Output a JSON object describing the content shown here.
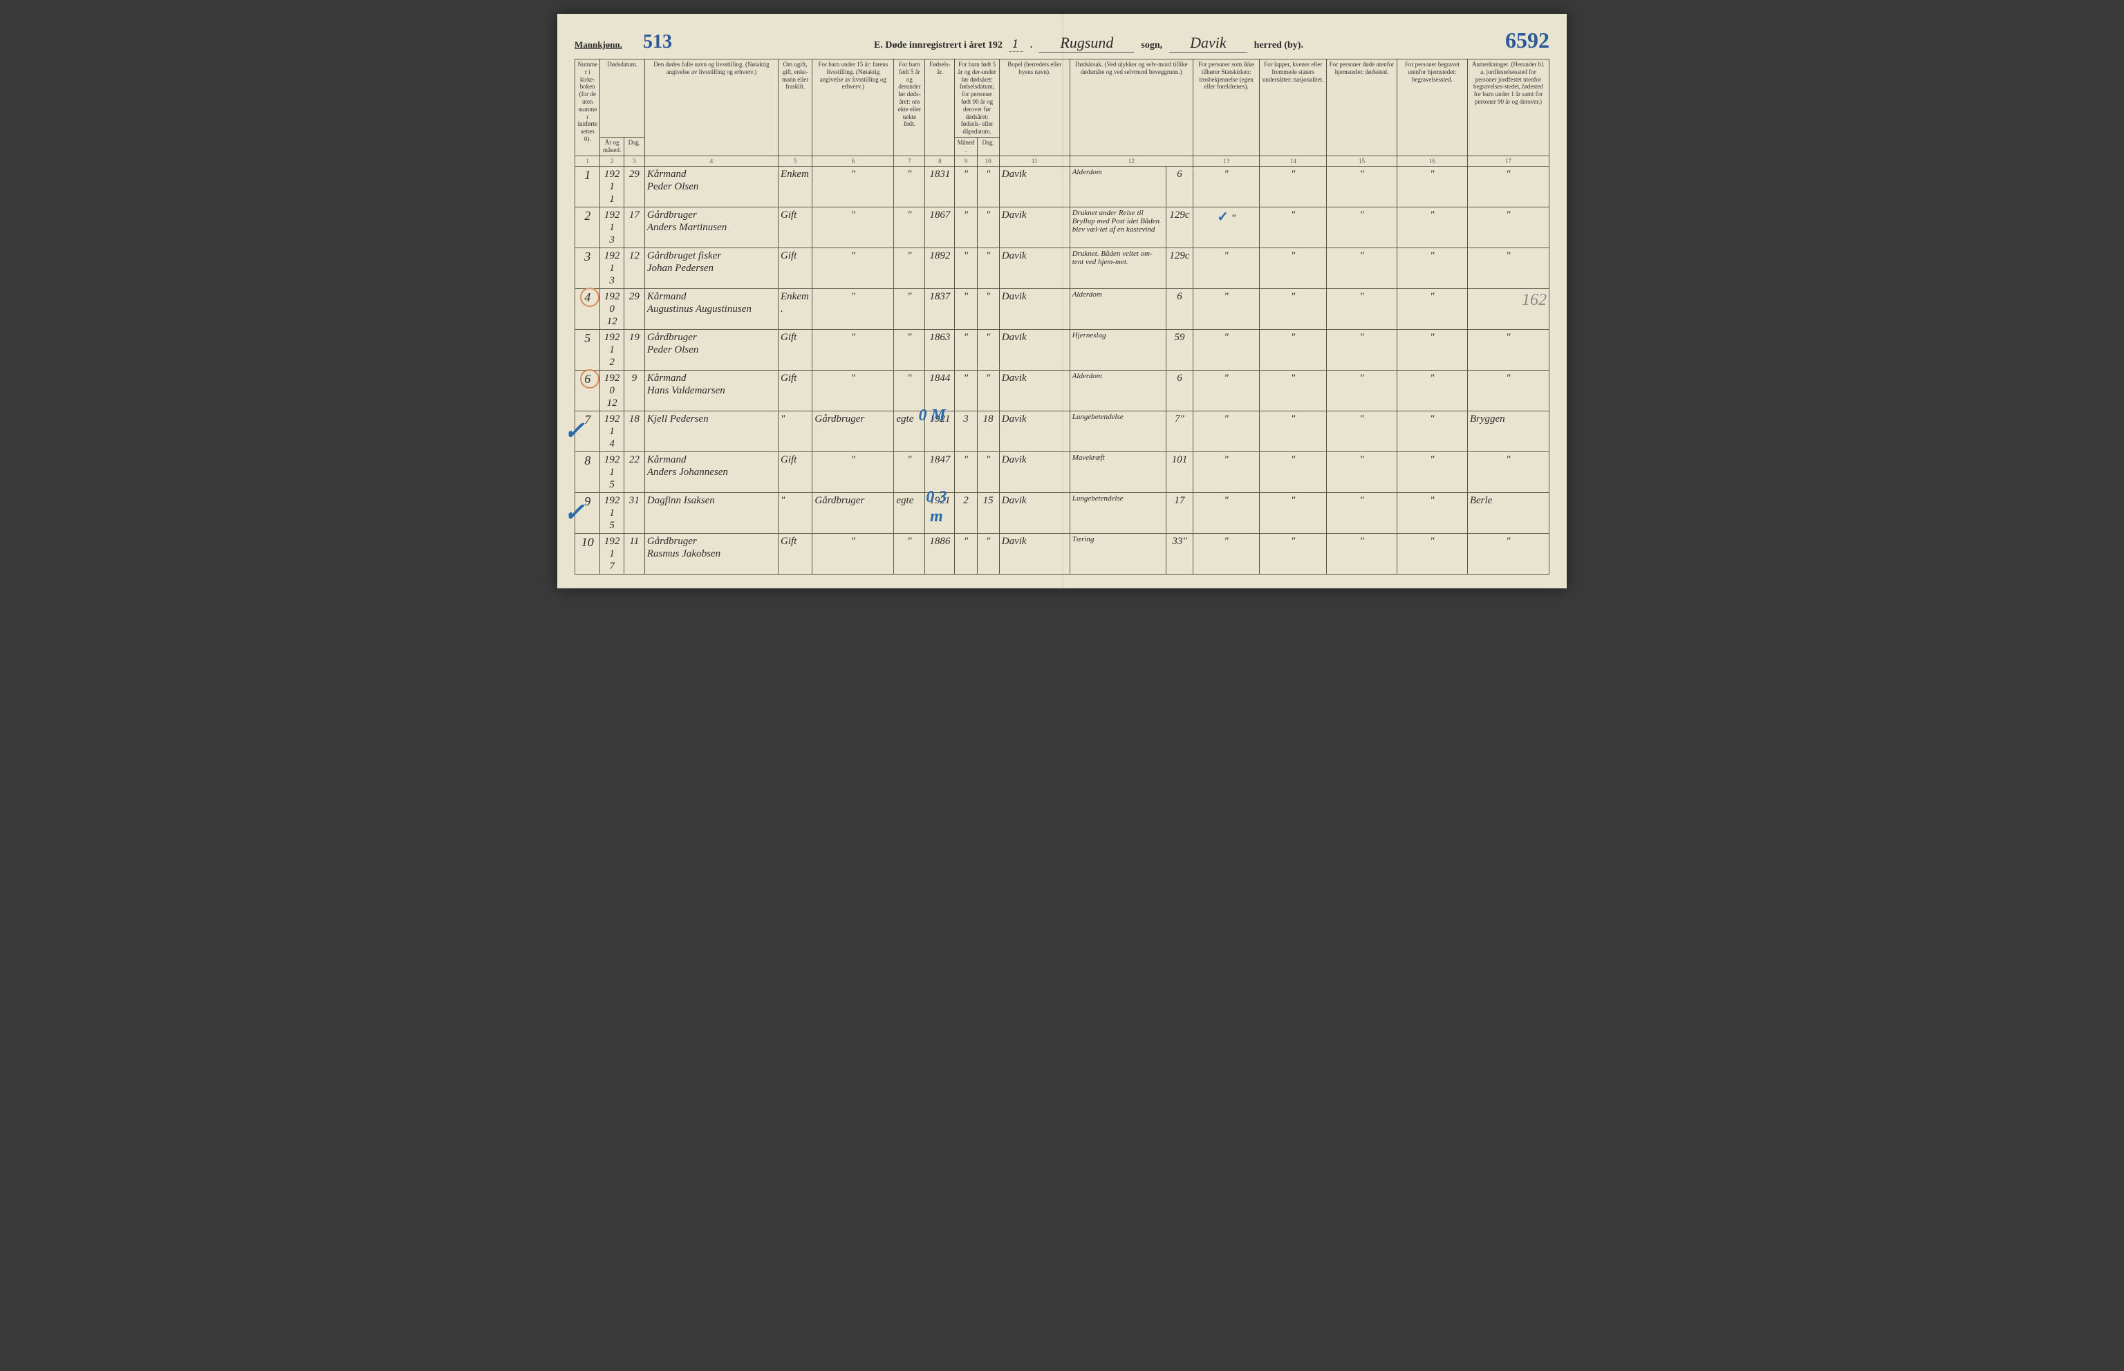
{
  "header": {
    "gender_label": "Mannkjønn.",
    "blue_number_top_left": "513",
    "title_prefix": "E.   Døde innregistrert i året 192",
    "year_digit": "1",
    "sogn_value": "Rugsund",
    "sogn_label": "sogn,",
    "herred_value": "Davik",
    "herred_label": "herred (by).",
    "blue_number_top_right": "6592"
  },
  "columns": {
    "c1": "Nummer i kirke-boken (for de uten nummer innførte settes 0).",
    "c2_3": "Dødsdatum.",
    "c2": "År og måned.",
    "c3": "Dag.",
    "c4": "Den dødes fulle navn og livsstilling. (Nøiaktig angivelse av livsstilling og erhverv.)",
    "c5": "Om ugift, gift, enke-mann eller fraskilt.",
    "c6": "For barn under 15 år: farens livsstilling. (Nøiaktig angivelse av livsstilling og erhverv.)",
    "c7": "For barn født 5 år og derunder før døds-året: om ekte eller uekte født.",
    "c8": "Fødsels-år.",
    "c9_10": "For barn født 5 år og der-under før dødsåret: fødselsdatum; for personer født 90 år og derover før dødsåret: fødsels- eller dåpsdatum.",
    "c9": "Måned.",
    "c10": "Dag.",
    "c11": "Bopel (herredets eller byens navn).",
    "c12": "Dødsårsak. (Ved ulykker og selv-mord tillike dødsmåte og ved selvmord beveggrunn.)",
    "c13": "For personer som ikke tilhører Statskirken: trosbekjennelse (egen eller foreldrenes).",
    "c14": "For lapper, kvener eller fremmede staters undersåtter: nasjonalitet.",
    "c15": "For personer døde utenfor hjemstedet: dødssted.",
    "c16": "For personer begravet utenfor hjemstedet: begravelsessted.",
    "c17": "Anmerkninger. (Herunder bl. a. jordfestelsessted for personer jordfestet utenfor begravelses-stedet, fødested for barn under 1 år samt for personer 90 år og derover.)"
  },
  "colnums": [
    "1",
    "2",
    "3",
    "4",
    "5",
    "6",
    "7",
    "8",
    "9",
    "10",
    "11",
    "12",
    "13",
    "14",
    "15",
    "16",
    "17"
  ],
  "rows": [
    {
      "n": "1",
      "year": "1921",
      "mon": "1",
      "day": "29",
      "name": "Kårmand\nPeder Olsen",
      "status": "Enkem",
      "c6": "\"",
      "c7": "\"",
      "birth": "1831",
      "c9": "\"",
      "c10": "\"",
      "bopel": "Davik",
      "cause": "Alderdom",
      "cause_num": "6",
      "c13": "\"",
      "c14": "\"",
      "c15": "\"",
      "c16": "\"",
      "c17": "\""
    },
    {
      "n": "2",
      "year": "1921",
      "mon": "3",
      "day": "17",
      "name": "Gårdbruger\nAnders Martinusen",
      "status": "Gift",
      "c6": "\"",
      "c7": "\"",
      "birth": "1867",
      "c9": "\"",
      "c10": "\"",
      "bopel": "Davik",
      "cause": "Druknet under Reise til Bryllup med Post idet Båden blev væl-tet af en kastevind",
      "cause_num": "129c",
      "c13_blue": "✓",
      "c13": "\"",
      "c14": "\"",
      "c15": "\"",
      "c16": "\"",
      "c17": "\""
    },
    {
      "n": "3",
      "year": "1921",
      "mon": "3",
      "day": "12",
      "name": "Gårdbruget fisker\nJohan Pedersen",
      "status": "Gift",
      "c6": "\"",
      "c7": "\"",
      "birth": "1892",
      "c9": "\"",
      "c10": "\"",
      "bopel": "Davik",
      "cause": "Druknet. Båden veltet om-tent ved hjem-met.",
      "cause_num": "129c",
      "c13": "\"",
      "c14": "\"",
      "c15": "\"",
      "c16": "\"",
      "c17": "\""
    },
    {
      "n": "4",
      "year": "1920",
      "mon": "12",
      "day": "29",
      "circled": true,
      "name": "Kårmand\nAugustinus Augustinusen",
      "status": "Enkem.",
      "c6": "\"",
      "c7": "\"",
      "birth": "1837",
      "c9": "\"",
      "c10": "\"",
      "bopel": "Davik",
      "cause": "Alderdom",
      "cause_num": "6",
      "c13": "\"",
      "c14": "\"",
      "c15": "\"",
      "c16": "\"",
      "c17_pencil": "162"
    },
    {
      "n": "5",
      "year": "1921",
      "mon": "2",
      "day": "19",
      "name": "Gårdbruger\nPeder Olsen",
      "status": "Gift",
      "c6": "\"",
      "c7": "\"",
      "birth": "1863",
      "c9": "\"",
      "c10": "\"",
      "bopel": "Davik",
      "cause": "Hjerneslag",
      "cause_num": "59",
      "c13": "\"",
      "c14": "\"",
      "c15": "\"",
      "c16": "\"",
      "c17": "\""
    },
    {
      "n": "6",
      "year": "1920",
      "mon": "12",
      "day": "9",
      "circled": true,
      "name": "Kårmand\nHans Valdemarsen",
      "status": "Gift",
      "c6": "\"",
      "c7": "\"",
      "birth": "1844",
      "c9": "\"",
      "c10": "\"",
      "bopel": "Davik",
      "cause": "Alderdom",
      "cause_num": "6",
      "c13": "\"",
      "c14": "\"",
      "c15": "\"",
      "c16": "\"",
      "c17": "\""
    },
    {
      "n": "7",
      "year": "1921",
      "mon": "4",
      "day": "18",
      "checked": true,
      "name": "Kjell Pedersen",
      "status": "\"",
      "c6": "Gårdbruger",
      "c7": "egte",
      "birth": "1921",
      "c9": "3",
      "c10": "18",
      "bopel": "Davik",
      "cause": "Lungebetendelse",
      "cause_num": "7\"",
      "blue_over": "0 M",
      "blue_under": true,
      "c13": "\"",
      "c14": "\"",
      "c15": "\"",
      "c16": "\"",
      "c17": "Bryggen"
    },
    {
      "n": "8",
      "year": "1921",
      "mon": "5",
      "day": "22",
      "name": "Kårmand\nAnders Johannesen",
      "status": "Gift",
      "c6": "\"",
      "c7": "\"",
      "birth": "1847",
      "c9": "\"",
      "c10": "\"",
      "bopel": "Davik",
      "cause": "Mavekræft",
      "cause_num": "101",
      "c13": "\"",
      "c14": "\"",
      "c15": "\"",
      "c16": "\"",
      "c17": "\""
    },
    {
      "n": "9",
      "year": "1921",
      "mon": "5",
      "day": "31",
      "checked": true,
      "name": "Dagfinn Isaksen",
      "status": "\"",
      "c6": "Gårdbruger",
      "c7": "egte",
      "birth": "1921",
      "c9": "2",
      "c10": "15",
      "bopel": "Davik",
      "cause": "Lungebetendelse",
      "cause_num": "17",
      "blue_over": "0 3 m",
      "blue_under": true,
      "c13": "\"",
      "c14": "\"",
      "c15": "\"",
      "c16": "\"",
      "c17": "Berle"
    },
    {
      "n": "10",
      "year": "1921",
      "mon": "7",
      "day": "11",
      "name": "Gårdbruger\nRasmus Jakobsen",
      "status": "Gift",
      "c6": "\"",
      "c7": "\"",
      "birth": "1886",
      "c9": "\"",
      "c10": "\"",
      "bopel": "Davik",
      "cause": "Tæring",
      "cause_num": "33\"",
      "c13": "\"",
      "c14": "\"",
      "c15": "\"",
      "c16": "\"",
      "c17": "\""
    }
  ],
  "widths": {
    "c1": 34,
    "c2": 32,
    "c3": 28,
    "c4": 180,
    "c5": 46,
    "c6": 110,
    "c7": 42,
    "c8": 40,
    "c9": 30,
    "c10": 30,
    "c11": 95,
    "c12": 130,
    "c12b": 36,
    "c13": 90,
    "c14": 90,
    "c15": 95,
    "c16": 95,
    "c17": 110
  }
}
